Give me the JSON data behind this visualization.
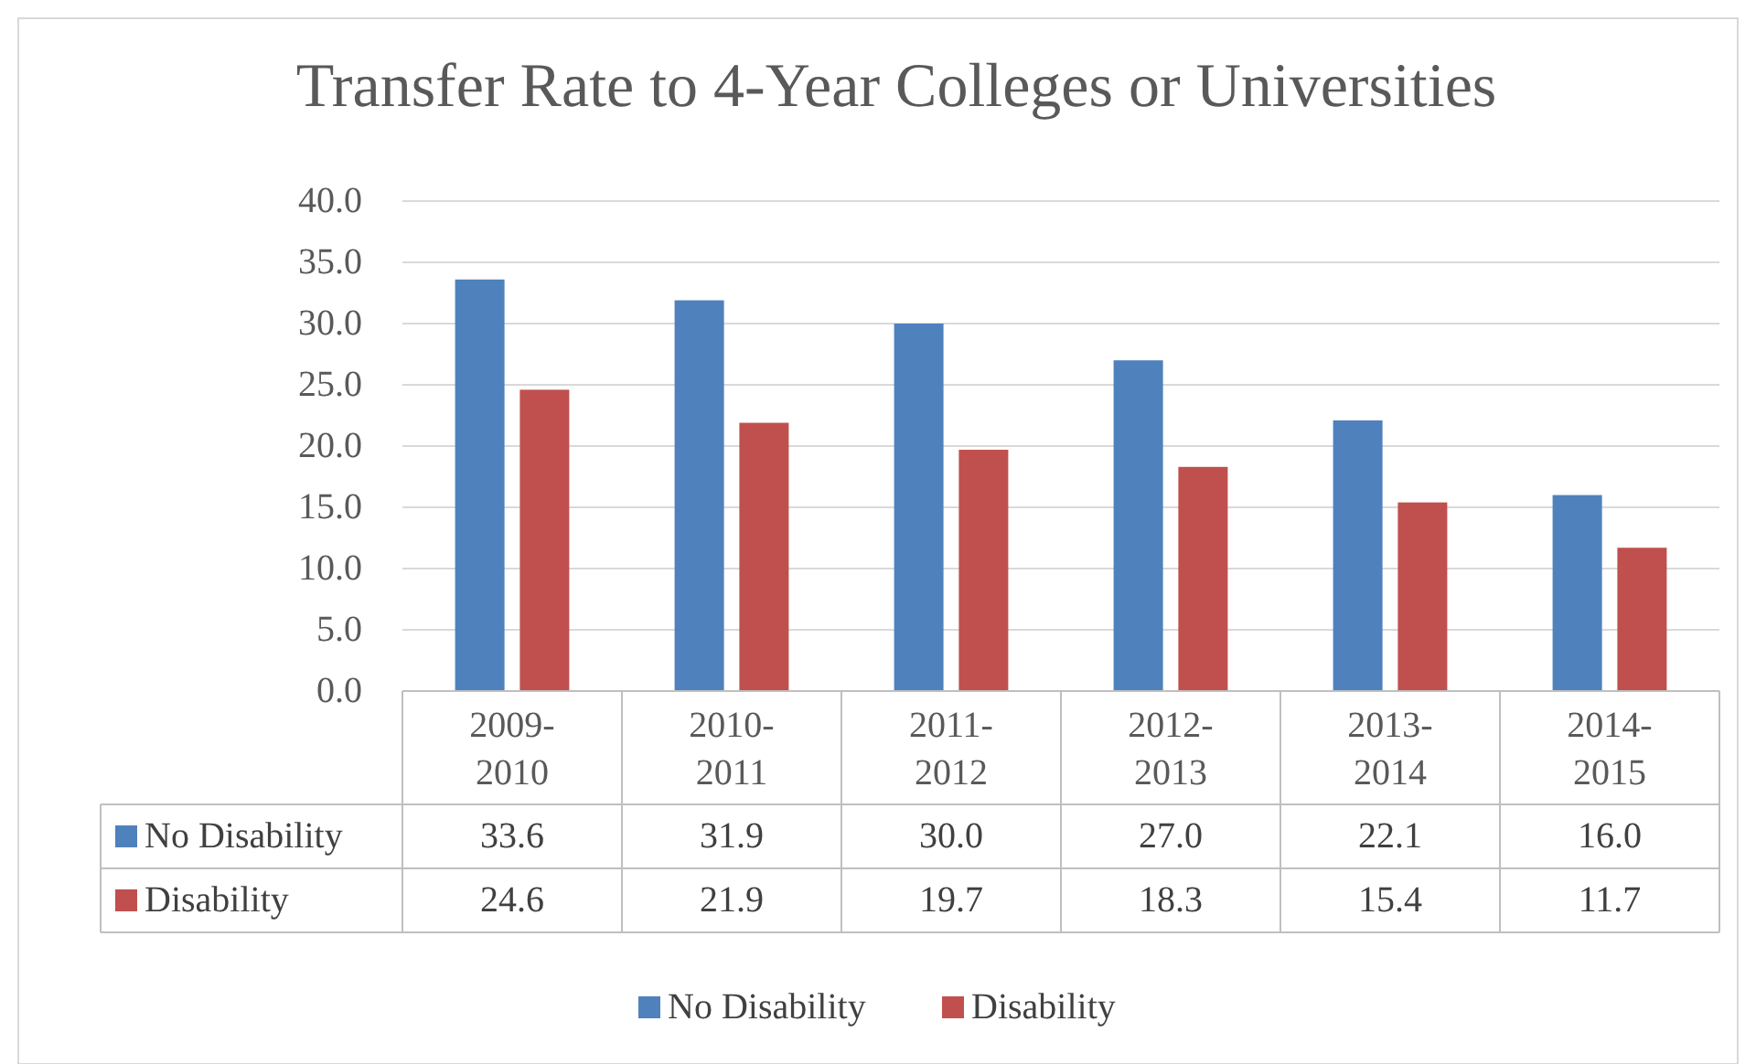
{
  "chart_data": {
    "type": "bar",
    "title": "Transfer Rate to 4-Year Colleges or Universities",
    "categories": [
      "2009-2010",
      "2010-2011",
      "2011-2012",
      "2012-2013",
      "2013-2014",
      "2014-2015"
    ],
    "series": [
      {
        "name": "No Disability",
        "color": "#4f81bd",
        "values": [
          33.6,
          31.9,
          30.0,
          27.0,
          22.1,
          16.0
        ],
        "value_labels": [
          "33.6",
          "31.9",
          "30.0",
          "27.0",
          "22.1",
          "16.0"
        ]
      },
      {
        "name": "Disability",
        "color": "#c0504d",
        "values": [
          24.6,
          21.9,
          19.7,
          18.3,
          15.4,
          11.7
        ],
        "value_labels": [
          "24.6",
          "21.9",
          "19.7",
          "18.3",
          "15.4",
          "11.7"
        ]
      }
    ],
    "ylim": [
      0,
      40
    ],
    "yticks": [
      {
        "value": 0,
        "label": "0.0"
      },
      {
        "value": 5,
        "label": "5.0"
      },
      {
        "value": 10,
        "label": "10.0"
      },
      {
        "value": 15,
        "label": "15.0"
      },
      {
        "value": 20,
        "label": "20.0"
      },
      {
        "value": 25,
        "label": "25.0"
      },
      {
        "value": 30,
        "label": "30.0"
      },
      {
        "value": 35,
        "label": "35.0"
      },
      {
        "value": 40,
        "label": "40.0"
      }
    ],
    "grid": "y",
    "legend": "bottom"
  }
}
